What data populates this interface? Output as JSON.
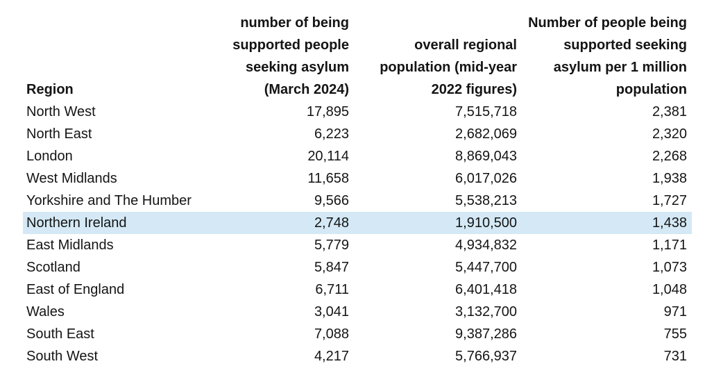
{
  "table": {
    "highlight_color": "#D4E9F5",
    "headers": {
      "region": "Region",
      "supported": "number of being\nsupported people\nseeking asylum\n(March 2024)",
      "population": "overall regional\npopulation (mid-year\n2022 figures)",
      "per_million": "Number of people being\nsupported seeking\nasylum per 1 million\npopulation"
    },
    "rows": [
      {
        "region": "North West",
        "supported": "17,895",
        "population": "7,515,718",
        "per_million": "2,381"
      },
      {
        "region": "North East",
        "supported": "6,223",
        "population": "2,682,069",
        "per_million": "2,320"
      },
      {
        "region": "London",
        "supported": "20,114",
        "population": "8,869,043",
        "per_million": "2,268"
      },
      {
        "region": "West Midlands",
        "supported": "11,658",
        "population": "6,017,026",
        "per_million": "1,938"
      },
      {
        "region": "Yorkshire and The Humber",
        "supported": "9,566",
        "population": "5,538,213",
        "per_million": "1,727"
      },
      {
        "region": "Northern Ireland",
        "supported": "2,748",
        "population": "1,910,500",
        "per_million": "1,438"
      },
      {
        "region": "East Midlands",
        "supported": "5,779",
        "population": "4,934,832",
        "per_million": "1,171"
      },
      {
        "region": "Scotland",
        "supported": "5,847",
        "population": "5,447,700",
        "per_million": "1,073"
      },
      {
        "region": "East of England",
        "supported": "6,711",
        "population": "6,401,418",
        "per_million": "1,048"
      },
      {
        "region": "Wales",
        "supported": "3,041",
        "population": "3,132,700",
        "per_million": "971"
      },
      {
        "region": "South East",
        "supported": "7,088",
        "population": "9,387,286",
        "per_million": "755"
      },
      {
        "region": "South West",
        "supported": "4,217",
        "population": "5,766,937",
        "per_million": "731"
      }
    ]
  },
  "chart_data": {
    "type": "table",
    "title": "",
    "columns": [
      "Region",
      "number of being supported people seeking asylum (March 2024)",
      "overall regional population (mid-year 2022 figures)",
      "Number of people being supported seeking asylum per 1 million population"
    ],
    "rows": [
      [
        "North West",
        17895,
        7515718,
        2381
      ],
      [
        "North East",
        6223,
        2682069,
        2320
      ],
      [
        "London",
        20114,
        8869043,
        2268
      ],
      [
        "West Midlands",
        11658,
        6017026,
        1938
      ],
      [
        "Yorkshire and The Humber",
        9566,
        5538213,
        1727
      ],
      [
        "Northern Ireland",
        2748,
        1910500,
        1438
      ],
      [
        "East Midlands",
        5779,
        4934832,
        1171
      ],
      [
        "Scotland",
        5847,
        5447700,
        1073
      ],
      [
        "East of England",
        6711,
        6401418,
        1048
      ],
      [
        "Wales",
        3041,
        3132700,
        971
      ],
      [
        "South East",
        7088,
        9387286,
        755
      ],
      [
        "South West",
        4217,
        5766937,
        731
      ]
    ],
    "highlighted_row": "Northern Ireland",
    "layout": {
      "sort": "per_million descending",
      "gridlines": false
    }
  }
}
